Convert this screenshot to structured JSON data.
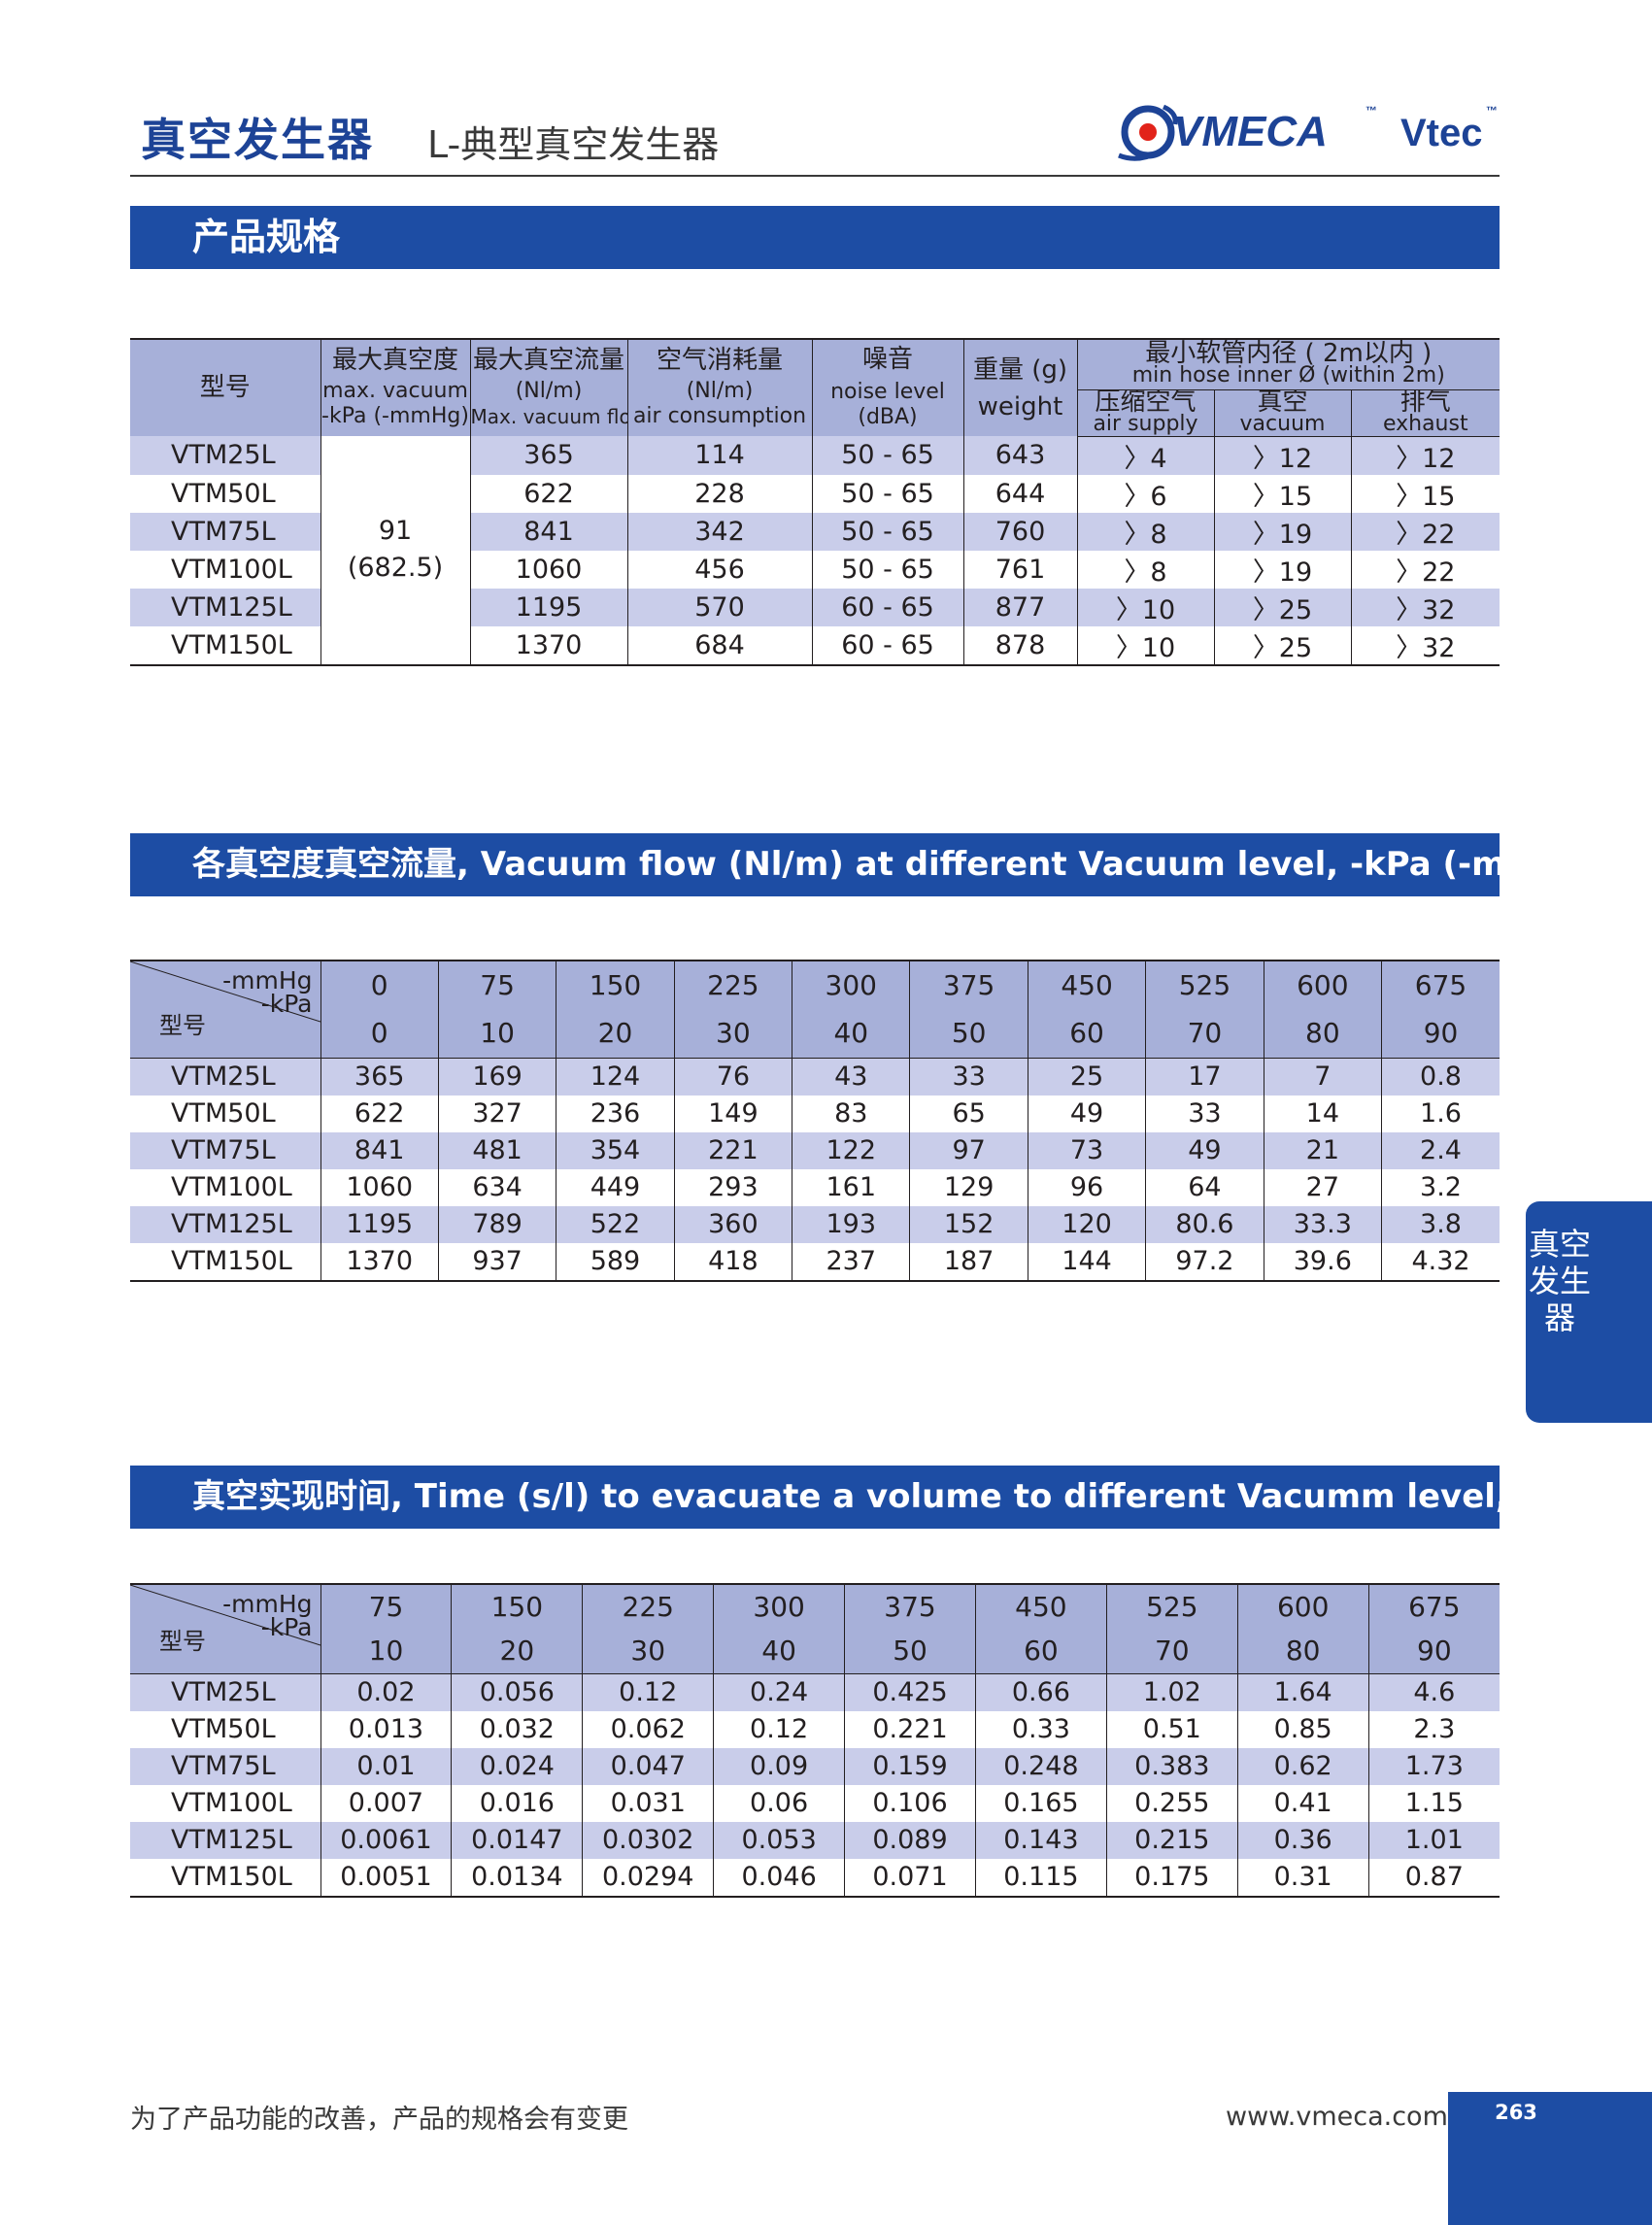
{
  "header": {
    "title": "真空发生器",
    "subtitle": "L-典型真空发生器",
    "logo_text": "VMECA",
    "logo_tm": "™",
    "logo_text2": "Vtec",
    "brand_color": "#1d4396"
  },
  "spec": {
    "section_title": "产品规格",
    "headers": {
      "model": "型号",
      "max_vacuum_cn": "最大真空度",
      "max_vacuum_en1": "max. vacuum",
      "max_vacuum_en2": "-kPa (-mmHg)",
      "max_flow_cn": "最大真空流量",
      "max_flow_unit": "(Nl/m)",
      "max_flow_en": "Max. vacuum flow",
      "air_cn": "空气消耗量",
      "air_unit": "(Nl/m)",
      "air_en": "air consumption",
      "noise_cn": "噪音",
      "noise_en1": "noise level",
      "noise_en2": "(dBA)",
      "weight_cn": "重量 (g)",
      "weight_en": "weight",
      "hose_cn": "最小软管内径 ( 2m以内 )",
      "hose_en": "min hose inner Ø (within 2m)",
      "supply_cn": "压缩空气",
      "supply_en": "air supply",
      "vac_cn": "真空",
      "vac_en": "vacuum",
      "exh_cn": "排气",
      "exh_en": "exhaust"
    },
    "max_vacuum_value": "91",
    "max_vacuum_mmhg": "(682.5)",
    "rows": [
      {
        "model": "VTM25L",
        "flow": "365",
        "air": "114",
        "noise": "50 - 65",
        "weight": "643",
        "supply": "〉4",
        "vacuum": "〉12",
        "exhaust": "〉12"
      },
      {
        "model": "VTM50L",
        "flow": "622",
        "air": "228",
        "noise": "50 - 65",
        "weight": "644",
        "supply": "〉6",
        "vacuum": "〉15",
        "exhaust": "〉15"
      },
      {
        "model": "VTM75L",
        "flow": "841",
        "air": "342",
        "noise": "50 - 65",
        "weight": "760",
        "supply": "〉8",
        "vacuum": "〉19",
        "exhaust": "〉22"
      },
      {
        "model": "VTM100L",
        "flow": "1060",
        "air": "456",
        "noise": "50 - 65",
        "weight": "761",
        "supply": "〉8",
        "vacuum": "〉19",
        "exhaust": "〉22"
      },
      {
        "model": "VTM125L",
        "flow": "1195",
        "air": "570",
        "noise": "60 - 65",
        "weight": "877",
        "supply": "〉10",
        "vacuum": "〉25",
        "exhaust": "〉32"
      },
      {
        "model": "VTM150L",
        "flow": "1370",
        "air": "684",
        "noise": "60 - 65",
        "weight": "878",
        "supply": "〉10",
        "vacuum": "〉25",
        "exhaust": "〉32"
      }
    ]
  },
  "flow_table": {
    "section_title": "各真空度真空流量, Vacuum flow (Nl/m) at different Vacuum level, -kPa (-mmHg)",
    "unit_mmhg": "-mmHg",
    "unit_kpa": "-kPa",
    "model_label": "型号",
    "mmhg": [
      "0",
      "75",
      "150",
      "225",
      "300",
      "375",
      "450",
      "525",
      "600",
      "675"
    ],
    "kpa": [
      "0",
      "10",
      "20",
      "30",
      "40",
      "50",
      "60",
      "70",
      "80",
      "90"
    ],
    "rows": [
      {
        "model": "VTM25L",
        "values": [
          "365",
          "169",
          "124",
          "76",
          "43",
          "33",
          "25",
          "17",
          "7",
          "0.8"
        ]
      },
      {
        "model": "VTM50L",
        "values": [
          "622",
          "327",
          "236",
          "149",
          "83",
          "65",
          "49",
          "33",
          "14",
          "1.6"
        ]
      },
      {
        "model": "VTM75L",
        "values": [
          "841",
          "481",
          "354",
          "221",
          "122",
          "97",
          "73",
          "49",
          "21",
          "2.4"
        ]
      },
      {
        "model": "VTM100L",
        "values": [
          "1060",
          "634",
          "449",
          "293",
          "161",
          "129",
          "96",
          "64",
          "27",
          "3.2"
        ]
      },
      {
        "model": "VTM125L",
        "values": [
          "1195",
          "789",
          "522",
          "360",
          "193",
          "152",
          "120",
          "80.6",
          "33.3",
          "3.8"
        ]
      },
      {
        "model": "VTM150L",
        "values": [
          "1370",
          "937",
          "589",
          "418",
          "237",
          "187",
          "144",
          "97.2",
          "39.6",
          "4.32"
        ]
      }
    ]
  },
  "time_table": {
    "section_title": "真空实现时间, Time (s/l) to evacuate a volume to different Vacumm level, -kPa (-mmHg)",
    "unit_mmhg": "-mmHg",
    "unit_kpa": "-kPa",
    "model_label": "型号",
    "mmhg": [
      "75",
      "150",
      "225",
      "300",
      "375",
      "450",
      "525",
      "600",
      "675"
    ],
    "kpa": [
      "10",
      "20",
      "30",
      "40",
      "50",
      "60",
      "70",
      "80",
      "90"
    ],
    "rows": [
      {
        "model": "VTM25L",
        "values": [
          "0.02",
          "0.056",
          "0.12",
          "0.24",
          "0.425",
          "0.66",
          "1.02",
          "1.64",
          "4.6"
        ]
      },
      {
        "model": "VTM50L",
        "values": [
          "0.013",
          "0.032",
          "0.062",
          "0.12",
          "0.221",
          "0.33",
          "0.51",
          "0.85",
          "2.3"
        ]
      },
      {
        "model": "VTM75L",
        "values": [
          "0.01",
          "0.024",
          "0.047",
          "0.09",
          "0.159",
          "0.248",
          "0.383",
          "0.62",
          "1.73"
        ]
      },
      {
        "model": "VTM100L",
        "values": [
          "0.007",
          "0.016",
          "0.031",
          "0.06",
          "0.106",
          "0.165",
          "0.255",
          "0.41",
          "1.15"
        ]
      },
      {
        "model": "VTM125L",
        "values": [
          "0.0061",
          "0.0147",
          "0.0302",
          "0.053",
          "0.089",
          "0.143",
          "0.215",
          "0.36",
          "1.01"
        ]
      },
      {
        "model": "VTM150L",
        "values": [
          "0.0051",
          "0.0134",
          "0.0294",
          "0.046",
          "0.071",
          "0.115",
          "0.175",
          "0.31",
          "0.87"
        ]
      }
    ]
  },
  "side_tab": "真空发生器",
  "footer": {
    "note": "为了产品功能的改善，产品的规格会有变更",
    "url": "www.vmeca.com",
    "page": "263"
  }
}
